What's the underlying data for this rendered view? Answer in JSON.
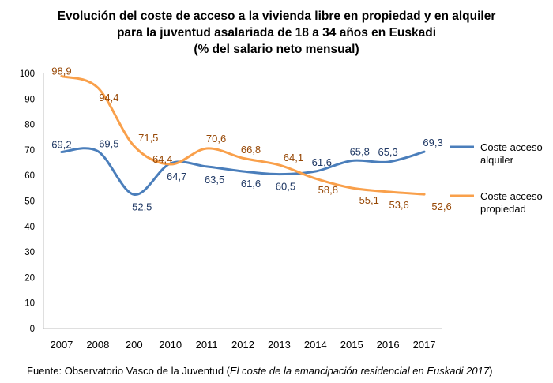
{
  "chart_data": {
    "type": "line",
    "title": [
      "Evolución del coste de acceso a la vivienda libre en propiedad y en alquiler",
      "para la juventud asalariada de 18 a 34 años en Euskadi",
      "(% del salario neto mensual)"
    ],
    "categories": [
      "2007",
      "2008",
      "200",
      "2010",
      "2011",
      "2012",
      "2013",
      "2014",
      "2015",
      "2016",
      "2017"
    ],
    "ylim": [
      0,
      100
    ],
    "yticks": [
      "0",
      "10",
      "20",
      "30",
      "40",
      "50",
      "60",
      "70",
      "80",
      "90",
      "100"
    ],
    "grid": false,
    "legend_position": "right",
    "series": [
      {
        "name": "Coste acceso alquiler",
        "color": "#4a7ebb",
        "label_color": "#1f3864",
        "values": [
          69.2,
          69.5,
          52.5,
          64.7,
          63.5,
          61.6,
          60.5,
          61.6,
          65.8,
          65.3,
          69.3
        ],
        "labels": [
          "69,2",
          "69,5",
          "52,5",
          "64,7",
          "63,5",
          "61,6",
          "60,5",
          "61,6",
          "65,8",
          "65,3",
          "69,3"
        ]
      },
      {
        "name": "Coste acceso propiedad",
        "color": "#f9a04b",
        "label_color": "#974806",
        "values": [
          98.9,
          94.4,
          71.5,
          64.4,
          70.6,
          66.8,
          64.1,
          58.8,
          55.1,
          53.6,
          52.6
        ],
        "labels": [
          "98,9",
          "94,4",
          "71,5",
          "64,4",
          "70,6",
          "66,8",
          "64,1",
          "58,8",
          "55,1",
          "53,6",
          "52,6"
        ]
      }
    ],
    "legend": [
      [
        "Coste acceso",
        "alquiler"
      ],
      [
        "Coste acceso",
        "propiedad"
      ]
    ]
  },
  "source": {
    "prefix": "Fuente: Observatorio Vasco de la Juventud (",
    "italic": "El coste de la emancipación residencial en Euskadi 2017",
    "suffix": ")"
  }
}
